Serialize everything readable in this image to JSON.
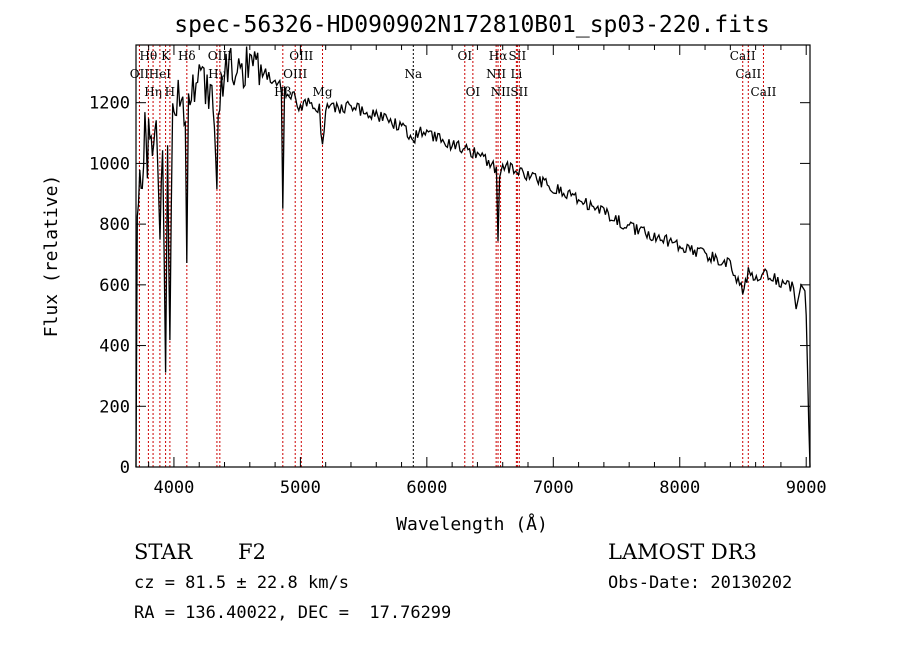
{
  "chart_data": {
    "type": "line",
    "title": "spec-56326-HD090902N172810B01_sp03-220.fits",
    "xlabel": "Wavelength (Å)",
    "ylabel": "Flux (relative)",
    "xlim": [
      3700,
      9030
    ],
    "ylim": [
      0,
      1390
    ],
    "xticks": [
      4000,
      5000,
      6000,
      7000,
      8000,
      9000
    ],
    "yticks": [
      0,
      200,
      400,
      600,
      800,
      1000,
      1200
    ],
    "series": [
      {
        "name": "spectrum",
        "x": [
          3700,
          3710,
          3730,
          3750,
          3770,
          3790,
          3800,
          3830,
          3850,
          3870,
          3890,
          3910,
          3934,
          3950,
          3968,
          3990,
          4020,
          4060,
          4090,
          4102,
          4115,
          4150,
          4200,
          4250,
          4300,
          4330,
          4340,
          4350,
          4400,
          4450,
          4500,
          4550,
          4600,
          4650,
          4700,
          4750,
          4800,
          4850,
          4861,
          4875,
          4900,
          4950,
          5000,
          5050,
          5100,
          5150,
          5175,
          5200,
          5300,
          5400,
          5500,
          5600,
          5700,
          5800,
          5893,
          5950,
          6000,
          6100,
          6200,
          6300,
          6400,
          6500,
          6550,
          6563,
          6575,
          6600,
          6700,
          6800,
          7000,
          7200,
          7400,
          7600,
          7800,
          8000,
          8200,
          8400,
          8498,
          8542,
          8560,
          8662,
          8700,
          8800,
          8900,
          8920,
          8960,
          8990,
          9000,
          9020,
          9030
        ],
        "y": [
          0,
          850,
          1000,
          950,
          1150,
          900,
          1100,
          1000,
          1150,
          1050,
          800,
          1100,
          370,
          1000,
          450,
          1150,
          1200,
          1250,
          1150,
          700,
          1200,
          1250,
          1300,
          1250,
          1200,
          1000,
          950,
          1200,
          1300,
          1320,
          1300,
          1310,
          1340,
          1310,
          1300,
          1290,
          1270,
          1250,
          850,
          1240,
          1230,
          1220,
          1180,
          1200,
          1190,
          1180,
          1050,
          1190,
          1180,
          1190,
          1170,
          1160,
          1140,
          1120,
          1080,
          1110,
          1100,
          1080,
          1060,
          1050,
          1030,
          1000,
          980,
          760,
          970,
          990,
          980,
          960,
          920,
          880,
          840,
          790,
          760,
          730,
          700,
          670,
          580,
          640,
          620,
          640,
          630,
          610,
          590,
          520,
          600,
          580,
          500,
          150,
          0
        ]
      }
    ],
    "lines": [
      {
        "w": 3727,
        "label": "OII",
        "row": 2,
        "color": "#cc0000"
      },
      {
        "w": 3798,
        "label": "Hθ",
        "row": 1,
        "color": "#cc0000"
      },
      {
        "w": 3835,
        "label": "Hη",
        "row": 3,
        "color": "#cc0000"
      },
      {
        "w": 3889,
        "label": "HeI",
        "row": 2,
        "color": "#cc0000"
      },
      {
        "w": 3934,
        "label": "K",
        "row": 1,
        "color": "#cc0000"
      },
      {
        "w": 3968,
        "label": "H",
        "row": 3,
        "color": "#cc0000"
      },
      {
        "w": 4102,
        "label": "Hδ",
        "row": 1,
        "color": "#cc0000"
      },
      {
        "w": 4340,
        "label": "Hγ",
        "row": 2,
        "color": "#cc0000"
      },
      {
        "w": 4363,
        "label": "OIII",
        "row": 1,
        "color": "#cc0000"
      },
      {
        "w": 4861,
        "label": "Hβ",
        "row": 3,
        "color": "#cc0000"
      },
      {
        "w": 4959,
        "label": "OIII",
        "row": 2,
        "color": "#cc0000"
      },
      {
        "w": 5007,
        "label": "OIII",
        "row": 1,
        "color": "#cc0000"
      },
      {
        "w": 5175,
        "label": "Mg",
        "row": 3,
        "color": "#cc0000"
      },
      {
        "w": 5893,
        "label": "Na",
        "row": 2,
        "color": "#000000"
      },
      {
        "w": 6300,
        "label": "OI",
        "row": 1,
        "color": "#cc0000"
      },
      {
        "w": 6364,
        "label": "OI",
        "row": 3,
        "color": "#cc0000"
      },
      {
        "w": 6548,
        "label": "NII",
        "row": 2,
        "color": "#cc0000"
      },
      {
        "w": 6563,
        "label": "Hα",
        "row": 1,
        "color": "#cc0000"
      },
      {
        "w": 6583,
        "label": "NII",
        "row": 3,
        "color": "#cc0000"
      },
      {
        "w": 6708,
        "label": "Li",
        "row": 2,
        "color": "#cc0000"
      },
      {
        "w": 6716,
        "label": "SII",
        "row": 1,
        "color": "#cc0000"
      },
      {
        "w": 6731,
        "label": "SII",
        "row": 3,
        "color": "#cc0000"
      },
      {
        "w": 8498,
        "label": "CaII",
        "row": 1,
        "color": "#cc0000"
      },
      {
        "w": 8542,
        "label": "CaII",
        "row": 2,
        "color": "#cc0000"
      },
      {
        "w": 8662,
        "label": "CaII",
        "row": 3,
        "color": "#cc0000"
      }
    ]
  },
  "info": {
    "class": "STAR",
    "subclass": "F2",
    "cz": "cz = 81.5 ± 22.8 km/s",
    "coords": "RA = 136.40022, DEC =  17.76299",
    "survey": "LAMOST DR3",
    "obsdate": "Obs-Date: 20130202"
  }
}
